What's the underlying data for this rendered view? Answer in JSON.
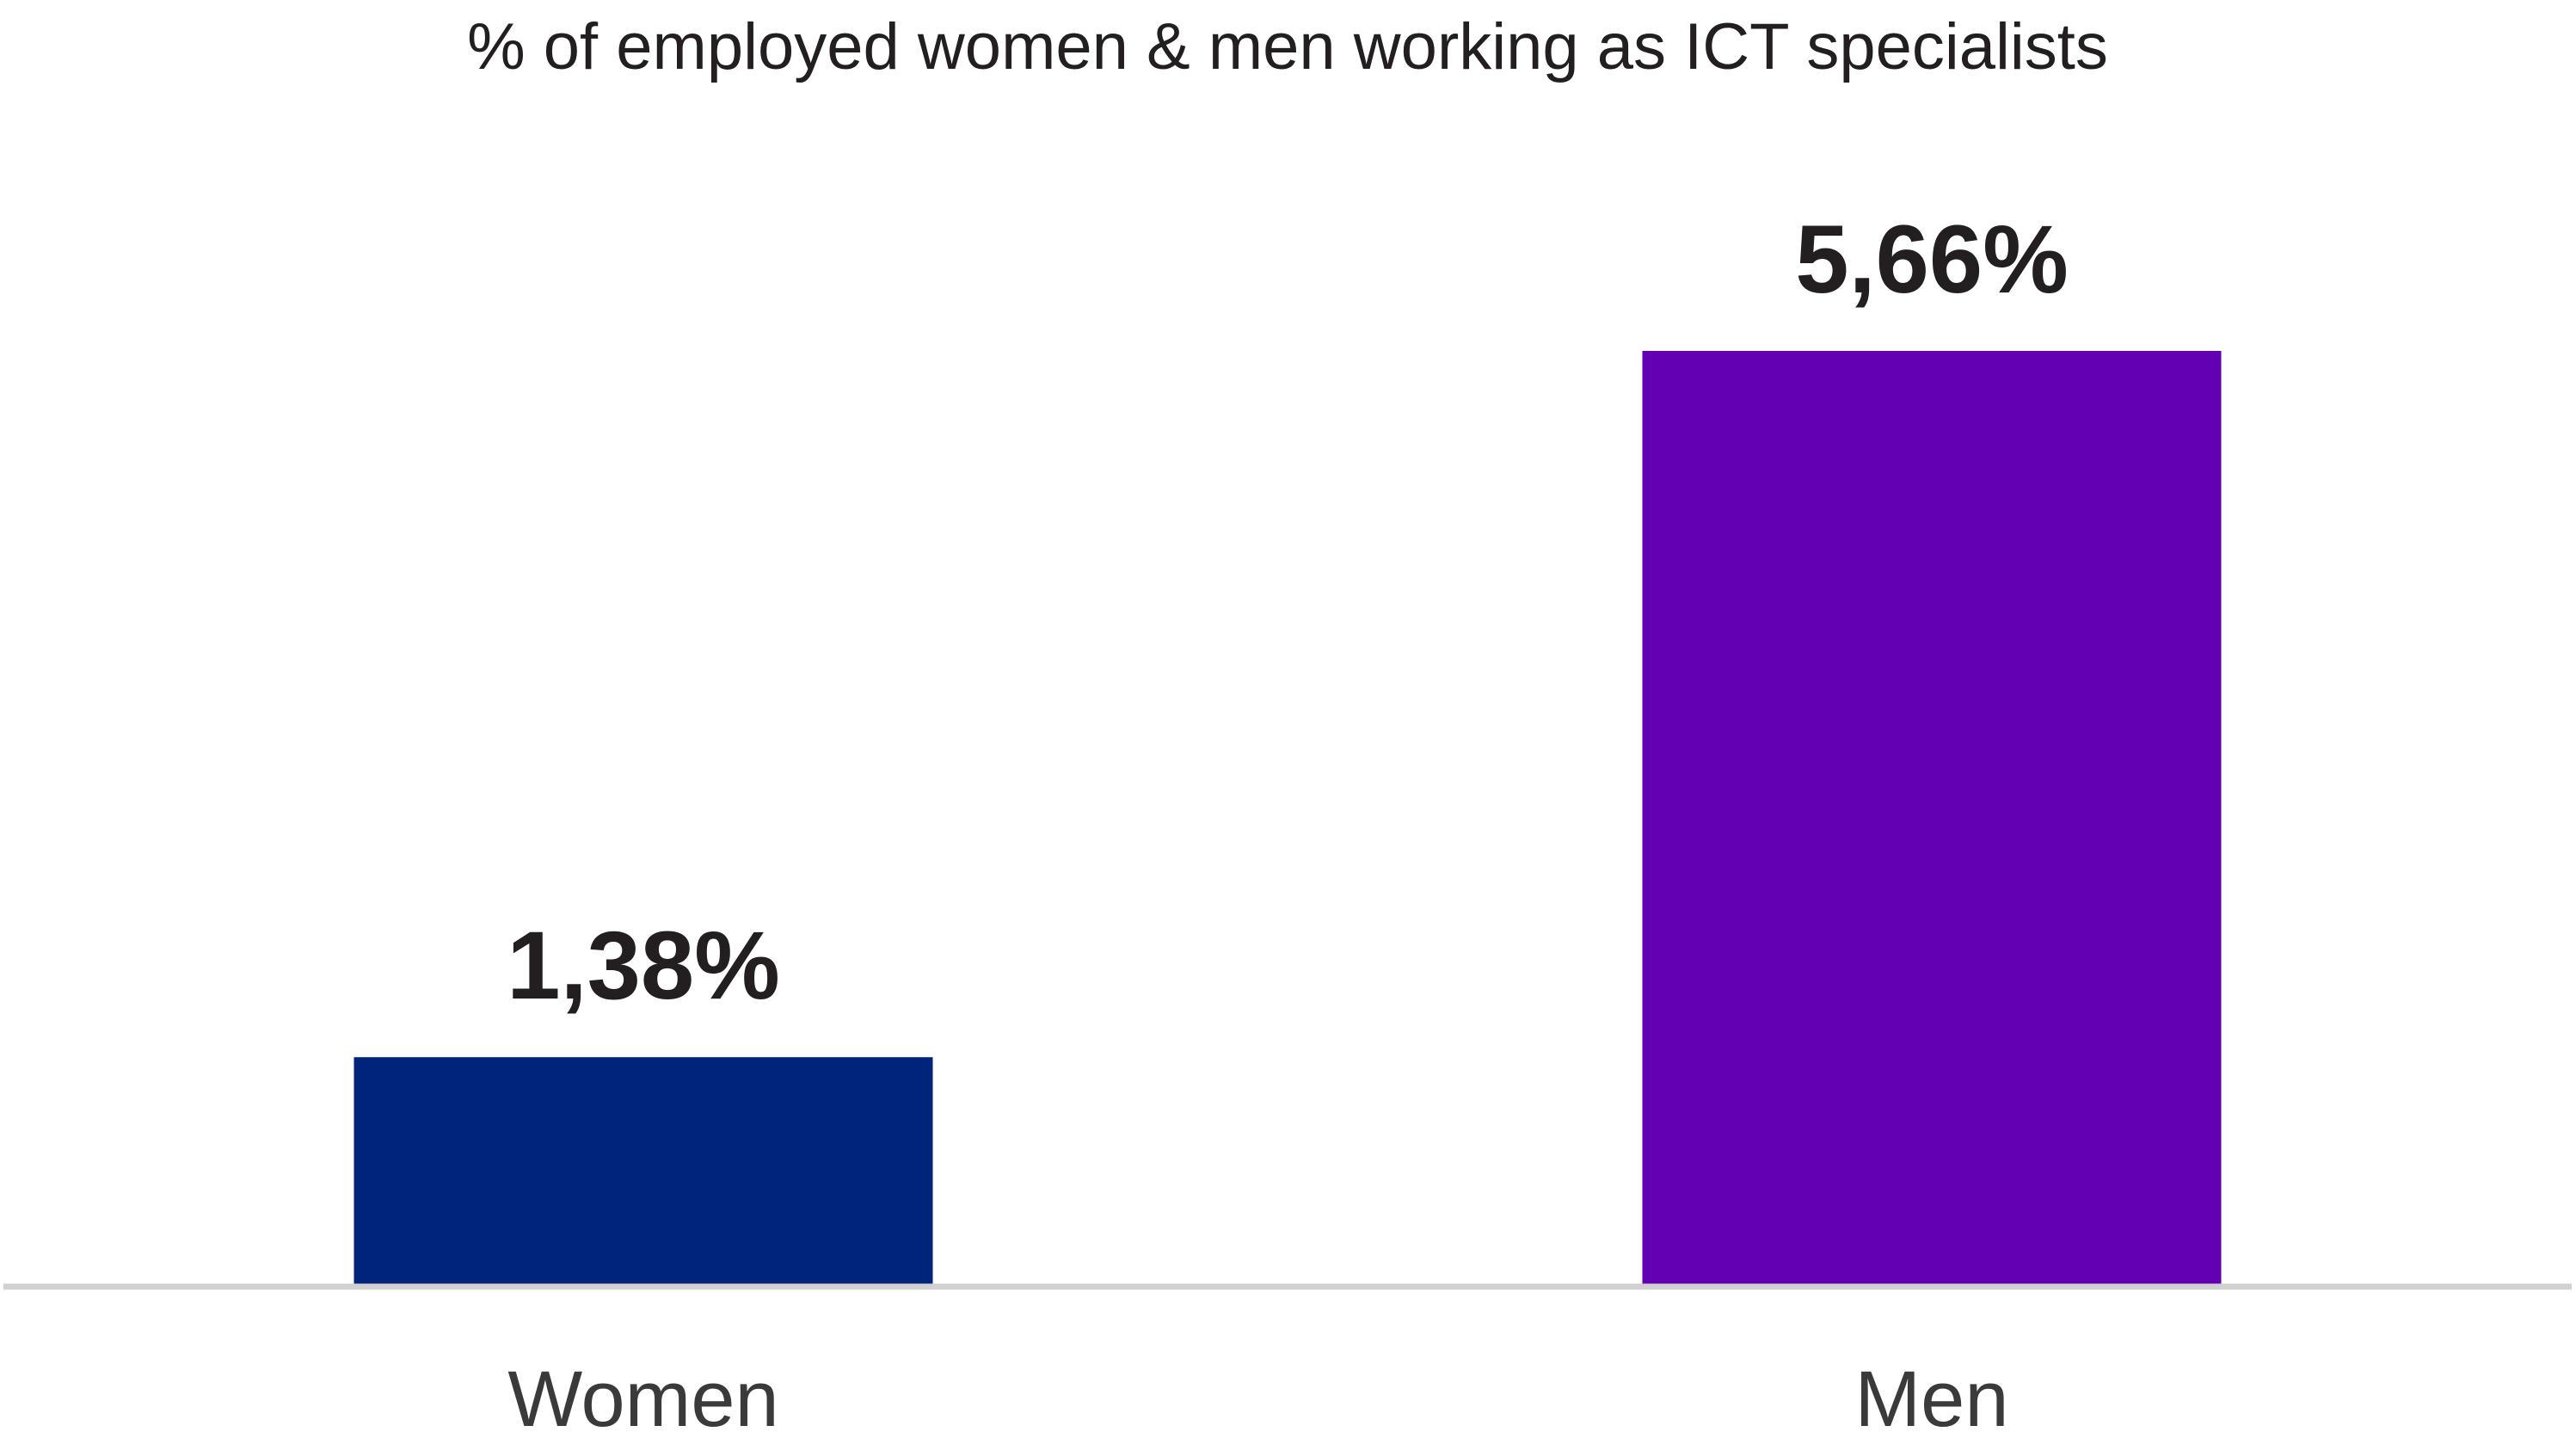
{
  "chart_data": {
    "type": "bar",
    "title": "% of employed women & men working as ICT specialists",
    "categories": [
      "Women",
      "Men"
    ],
    "values": [
      1.38,
      5.66
    ],
    "value_labels": [
      "1,38%",
      "5,66%"
    ],
    "colors": [
      "#00247a",
      "#6300b3"
    ],
    "xlabel": "",
    "ylabel": "",
    "ylim": [
      0,
      5.66
    ],
    "grid": false,
    "axis_color": "#d0d0d0"
  }
}
